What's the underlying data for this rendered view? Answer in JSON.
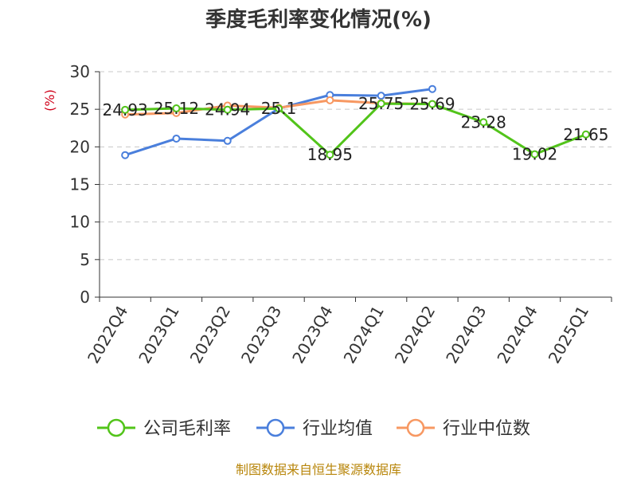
{
  "chart_data": {
    "type": "line",
    "title": "季度毛利率变化情况(%)",
    "ylabel": "(%)",
    "ylim": [
      0,
      30
    ],
    "yticks": [
      0,
      5,
      10,
      15,
      20,
      25,
      30
    ],
    "grid": true,
    "legend_placement": "bottom",
    "categories": [
      "2022Q4",
      "2023Q1",
      "2023Q2",
      "2023Q3",
      "2023Q4",
      "2024Q1",
      "2024Q2",
      "2024Q3",
      "2024Q4",
      "2025Q1"
    ],
    "series": [
      {
        "name": "公司毛利率",
        "color": "#52c41a",
        "values": [
          24.93,
          25.12,
          24.94,
          25.1,
          18.95,
          25.75,
          25.69,
          23.28,
          19.02,
          21.65
        ],
        "labels": [
          "24.93",
          "25.12",
          "24.94",
          "25.1",
          "18.95",
          "25.75",
          "25.69",
          "23.28",
          "19.02",
          "21.65"
        ]
      },
      {
        "name": "行业均值",
        "color": "#4a7fdc",
        "values": [
          18.9,
          21.1,
          20.8,
          25.1,
          26.9,
          26.8,
          27.7,
          null,
          null,
          null
        ]
      },
      {
        "name": "行业中位数",
        "color": "#f79862",
        "values": [
          24.3,
          24.5,
          25.5,
          25.2,
          26.2,
          25.8,
          25.7,
          null,
          null,
          null
        ]
      }
    ],
    "source": "制图数据来自恒生聚源数据库"
  }
}
